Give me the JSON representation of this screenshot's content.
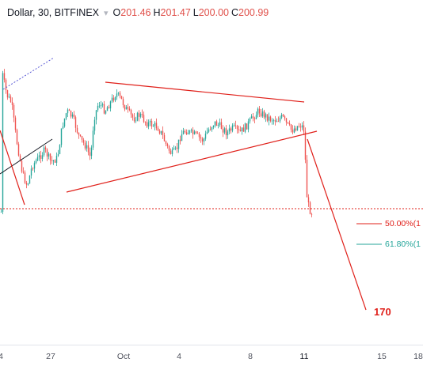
{
  "header": {
    "symbol": "Dollar, 30, BITFINEX",
    "arrow": "▾",
    "o_label": "O",
    "o_value": "201.46",
    "h_label": "H",
    "h_value": "201.47",
    "l_label": "L",
    "l_value": "200.00",
    "c_label": "C",
    "c_value": "200.99"
  },
  "x_axis": {
    "labels": [
      {
        "text": "4"
      },
      {
        "text": "27"
      },
      {
        "text": "Oct"
      },
      {
        "text": "4"
      },
      {
        "text": "8"
      },
      {
        "text": "11"
      },
      {
        "text": "15"
      },
      {
        "text": "18"
      }
    ]
  },
  "annotations": {
    "fib_50": "50.00%(1",
    "fib_618": "61.80%(1",
    "target": "170"
  },
  "colors": {
    "up": "#26a69a",
    "down": "#ef5350",
    "trend": "#e0201a",
    "fib50": "#e0201a",
    "fib618": "#26a69a",
    "dotted": "#5b5bd6",
    "black_line": "#131722"
  }
}
